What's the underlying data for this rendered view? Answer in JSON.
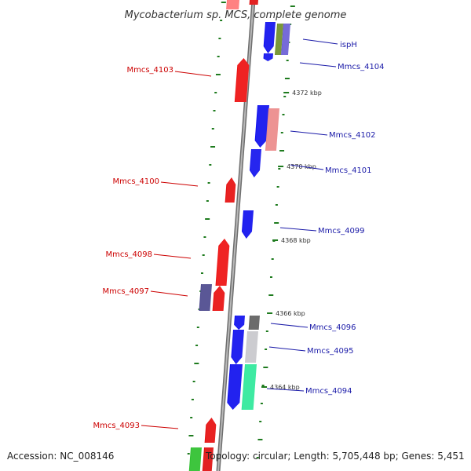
{
  "title": "Mycobacterium sp. MCS, complete genome",
  "footer": {
    "accession": "Accession: NC_008146",
    "topology": "Topology: circular; Length: 5,705,448 bp; Genes: 5,451"
  },
  "colors": {
    "backbone": "#8a8a8a",
    "forward_gene": "#ff0000",
    "reverse_gene": "#0000ff",
    "tick": "#1e7b1e",
    "left_label": "#cc0000",
    "right_label": "#1a1aa8"
  },
  "scale_labels": [
    "4372 kbp",
    "4370 kbp",
    "4368 kbp",
    "4366 kbp",
    "4364 kbp"
  ],
  "left_labels": [
    "Mmcs_4103",
    "Mmcs_4100",
    "Mmcs_4098",
    "Mmcs_4097",
    "Mmcs_4093"
  ],
  "right_labels": [
    "ispH",
    "Mmcs_4104",
    "Mmcs_4102",
    "Mmcs_4101",
    "Mmcs_4099",
    "Mmcs_4096",
    "Mmcs_4095",
    "Mmcs_4094"
  ]
}
